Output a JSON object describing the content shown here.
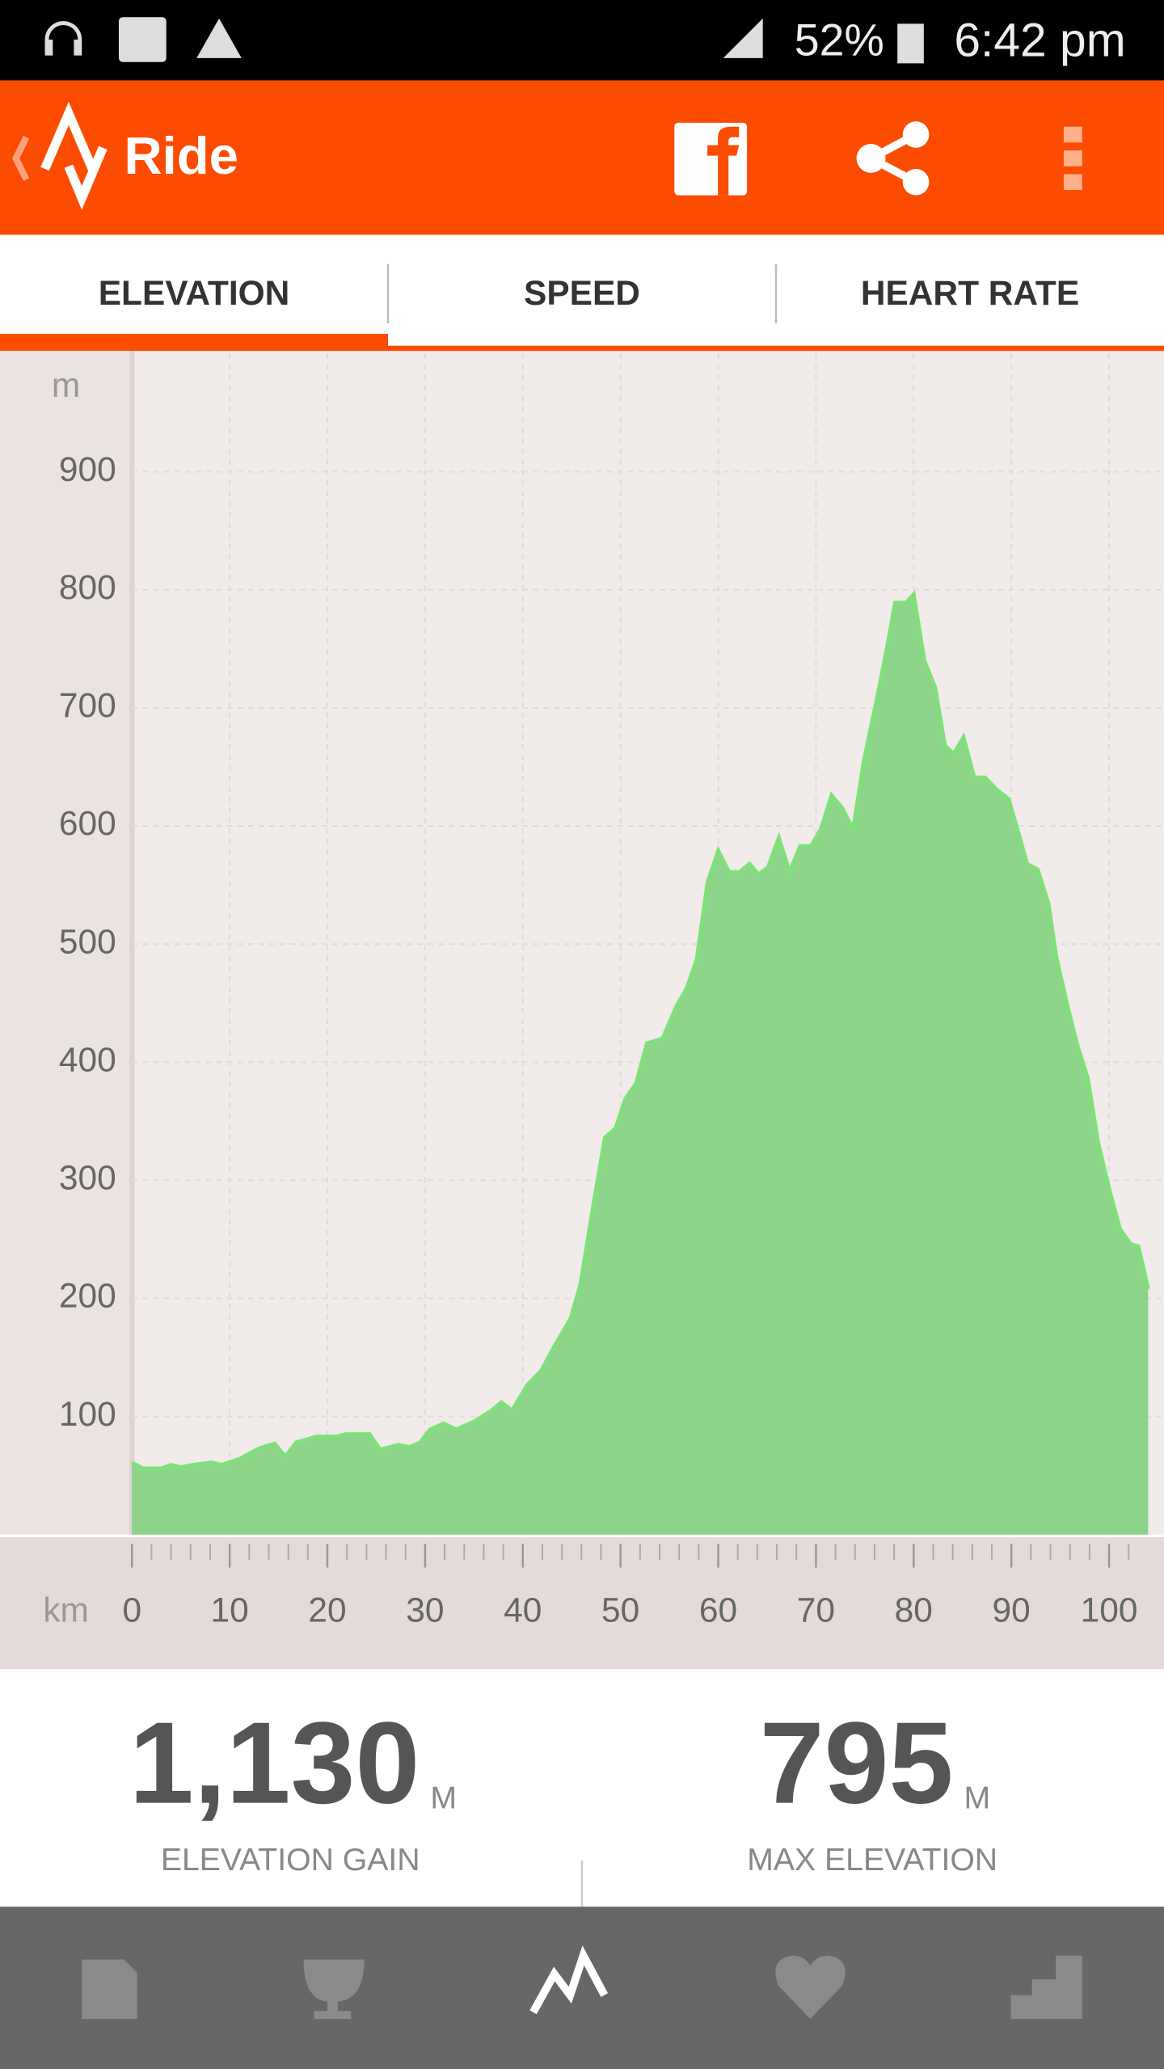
{
  "status_bar": {
    "battery": "52%",
    "time": "6:42 pm"
  },
  "app_bar": {
    "title": "Ride"
  },
  "tabs": [
    "ELEVATION",
    "SPEED",
    "HEART RATE"
  ],
  "chart_data": {
    "type": "area",
    "y_unit": "m",
    "x_unit": "km",
    "color": "#8dd48a",
    "line_color": "#7fe07a",
    "grid": true,
    "x": [
      0,
      1.1,
      3,
      4,
      5,
      6.2,
      8.1,
      9.2,
      11,
      13,
      14.6,
      15.7,
      16.8,
      18.9,
      21,
      21.9,
      24.3,
      25.4,
      27.3,
      28.4,
      29.5,
      30.5,
      31.9,
      33.2,
      35.1,
      36.8,
      37.8,
      38.9,
      40.5,
      41.9,
      43.2,
      44.9,
      45.9,
      47.3,
      48.4,
      49.5,
      50.5,
      51.6,
      52.7,
      54.3,
      55.7,
      56.8,
      57.8,
      58.9,
      60,
      61.1,
      62.2,
      63.2,
      64.1,
      65.1,
      66.2,
      67.3,
      68.4,
      69.5,
      70.5,
      71.6,
      72.7,
      73.8,
      74.9,
      76.2,
      77.3,
      78.1,
      79.2,
      80,
      81.1,
      82.2,
      83.2,
      84.1,
      85.1,
      86.2,
      87.3,
      88.6,
      89.7,
      90.8,
      91.6,
      92.7,
      93.8,
      94.6,
      95.7,
      96.8,
      97.8,
      98.9,
      100,
      101.1,
      102.2,
      103,
      104
    ],
    "values": [
      61,
      56,
      56,
      59,
      57,
      59,
      61,
      59,
      64,
      73,
      77,
      66,
      78,
      83,
      83,
      85,
      85,
      72,
      76,
      74,
      78,
      89,
      94,
      89,
      96,
      105,
      112,
      105,
      127,
      139,
      159,
      183,
      212,
      283,
      336,
      344,
      369,
      382,
      416,
      420,
      447,
      463,
      487,
      552,
      579,
      561,
      561,
      568,
      559,
      565,
      590,
      561,
      583,
      583,
      597,
      626,
      615,
      597,
      655,
      706,
      752,
      789,
      789,
      796,
      740,
      717,
      668,
      661,
      675,
      641,
      641,
      630,
      623,
      592,
      568,
      563,
      534,
      489,
      449,
      413,
      387,
      331,
      293,
      259,
      246,
      244,
      208
    ],
    "xlim": [
      0,
      104
    ],
    "ylim": [
      0,
      1000
    ],
    "xticks": [
      0,
      10,
      20,
      30,
      40,
      50,
      60,
      70,
      80,
      90,
      100
    ],
    "xminorticks": [
      2,
      4,
      6,
      8,
      12,
      14,
      16,
      18,
      22,
      24,
      26,
      28,
      32,
      34,
      36,
      38,
      42,
      44,
      46,
      48,
      52,
      54,
      56,
      58,
      62,
      64,
      66,
      68,
      72,
      74,
      76,
      78,
      82,
      84,
      86,
      88,
      92,
      94,
      96,
      98,
      102
    ],
    "yticks": [
      100,
      200,
      300,
      400,
      500,
      600,
      700,
      800,
      900
    ]
  },
  "stats": [
    {
      "value": "1,130",
      "unit": "M",
      "label": "ELEVATION GAIN"
    },
    {
      "value": "795",
      "unit": "M",
      "label": "MAX ELEVATION"
    }
  ]
}
